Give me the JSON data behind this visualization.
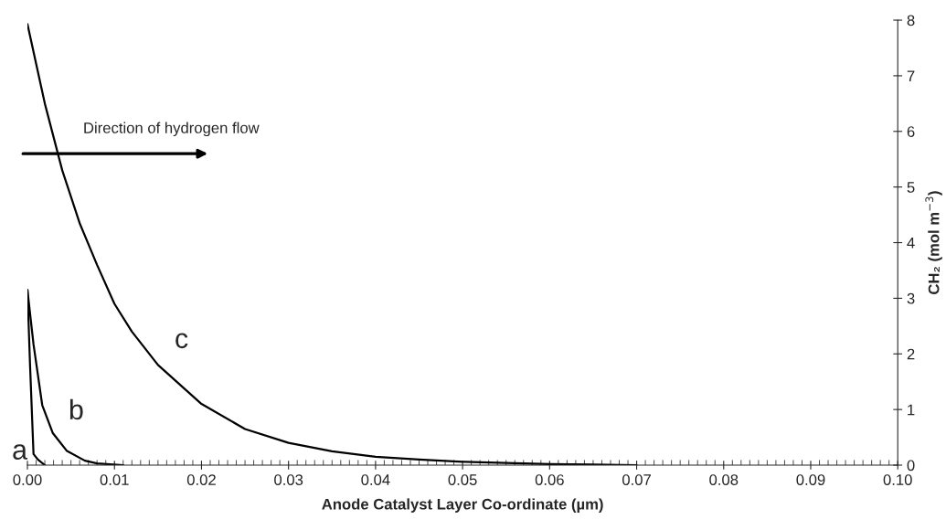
{
  "chart_data": {
    "type": "line",
    "xlabel": "Anode Catalyst Layer Co-ordinate (µm)",
    "ylabel": "CH₂ (mol m$^{−3}$)",
    "xlim": [
      0,
      0.1
    ],
    "ylim": [
      0,
      8
    ],
    "xticks": [
      {
        "value": 0,
        "label": "0.00"
      },
      {
        "value": 0.01,
        "label": "0.01"
      },
      {
        "value": 0.02,
        "label": "0.02"
      },
      {
        "value": 0.03,
        "label": "0.03"
      },
      {
        "value": 0.04,
        "label": "0.04"
      },
      {
        "value": 0.05,
        "label": "0.05"
      },
      {
        "value": 0.06,
        "label": "0.06"
      },
      {
        "value": 0.07,
        "label": "0.07"
      },
      {
        "value": 0.08,
        "label": "0.08"
      },
      {
        "value": 0.09,
        "label": "0.09"
      },
      {
        "value": 0.1,
        "label": "0.10"
      }
    ],
    "yticks": [
      0,
      1,
      2,
      3,
      4,
      5,
      6,
      7,
      8
    ],
    "grid": false,
    "marker": "none",
    "line_style": "solid",
    "series": [
      {
        "color": "#000000",
        "x": [
          0,
          0.0003,
          0.0007,
          0.0012,
          0.002
        ],
        "values": [
          3.15,
          1.8,
          0.2,
          0.1,
          0
        ]
      },
      {
        "color": "#000000",
        "x": [
          0,
          0.0007,
          0.0017,
          0.0029,
          0.0045,
          0.0066,
          0.008,
          0.011
        ],
        "values": [
          3.15,
          2.17,
          1.08,
          0.58,
          0.26,
          0.08,
          0.03,
          0
        ]
      },
      {
        "color": "#000000",
        "x": [
          0,
          0.002,
          0.004,
          0.006,
          0.008,
          0.01,
          0.012,
          0.015,
          0.02,
          0.025,
          0.03,
          0.035,
          0.04,
          0.045,
          0.05,
          0.055,
          0.06,
          0.065,
          0.07
        ],
        "values": [
          7.93,
          6.5,
          5.3,
          4.35,
          3.6,
          2.9,
          2.4,
          1.8,
          1.1,
          0.65,
          0.4,
          0.25,
          0.15,
          0.1,
          0.06,
          0.04,
          0.02,
          0.01,
          0
        ]
      }
    ],
    "annotations": [
      "a",
      "b",
      "c",
      "Direction of hydrogen flow"
    ]
  }
}
